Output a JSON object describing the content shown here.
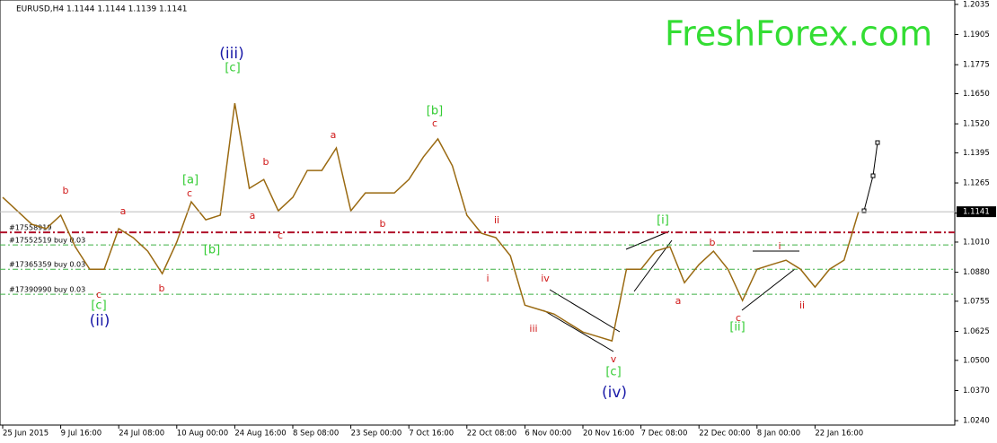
{
  "chart_data": {
    "type": "line",
    "title": "EURUSD,H4  1.1144 1.1144 1.1139 1.1141",
    "watermark": "FreshForex.com",
    "categories": [
      "25 Jun 2015",
      null,
      null,
      null,
      "9 Jul 16:00",
      null,
      null,
      null,
      "24 Jul 08:00",
      null,
      null,
      null,
      "10 Aug 00:00",
      null,
      null,
      null,
      "24 Aug 16:00",
      null,
      null,
      null,
      "8 Sep 08:00",
      null,
      null,
      null,
      "23 Sep 00:00",
      null,
      null,
      null,
      "7 Oct 16:00",
      null,
      null,
      null,
      "22 Oct 08:00",
      null,
      null,
      null,
      "6 Nov 00:00",
      null,
      null,
      null,
      "20 Nov 16:00",
      null,
      null,
      null,
      "7 Dec 08:00",
      null,
      null,
      null,
      "22 Dec 00:00",
      null,
      null,
      null,
      "8 Jan 00:00",
      null,
      null,
      null,
      "22 Jan 16:00",
      null,
      null,
      null
    ],
    "series": [
      {
        "name": "EURUSD",
        "color": "#9a6a12",
        "values": [
          1.1203,
          1.1145,
          1.1087,
          1.1068,
          1.1126,
          1.099,
          1.0893,
          1.0893,
          1.1068,
          1.1029,
          1.0971,
          1.0874,
          1.101,
          1.1184,
          1.1106,
          1.1126,
          1.1609,
          1.1242,
          1.128,
          1.1145,
          1.1203,
          1.1319,
          1.1319,
          1.1416,
          1.1145,
          1.1222,
          1.1222,
          1.1222,
          1.128,
          1.1377,
          1.1455,
          1.1339,
          1.1126,
          1.1048,
          1.1029,
          1.0951,
          1.0738,
          1.0719,
          1.07,
          1.0661,
          1.0622,
          1.0603,
          1.0584,
          1.0893,
          1.0893,
          1.0971,
          1.099,
          1.0835,
          1.0913,
          1.0971,
          1.0893,
          1.0758,
          1.0893,
          1.0913,
          1.0932,
          1.0893,
          1.0816,
          1.0893,
          1.0932,
          1.1141
        ]
      }
    ],
    "ylim": [
      1.0221,
      1.2054
    ],
    "yticks": [
      {
        "value": 1.2035,
        "label": "1.2035"
      },
      {
        "value": 1.1905,
        "label": "1.1905"
      },
      {
        "value": 1.1775,
        "label": "1.1775"
      },
      {
        "value": 1.165,
        "label": "1.1650"
      },
      {
        "value": 1.152,
        "label": "1.1520"
      },
      {
        "value": 1.1395,
        "label": "1.1395"
      },
      {
        "value": 1.1265,
        "label": "1.1265"
      },
      {
        "value": 1.1135,
        "label": "1.1135"
      },
      {
        "value": 1.101,
        "label": "1.1010"
      },
      {
        "value": 1.088,
        "label": "1.0880"
      },
      {
        "value": 1.0755,
        "label": "1.0755"
      },
      {
        "value": 1.0625,
        "label": "1.0625"
      },
      {
        "value": 1.05,
        "label": "1.0500"
      },
      {
        "value": 1.037,
        "label": "1.0370"
      },
      {
        "value": 1.024,
        "label": "1.0240"
      }
    ],
    "current_price": {
      "value": 1.1141,
      "label": "1.1141"
    },
    "levels": [
      {
        "label": "#17558919",
        "value": 1.1052,
        "color": "#b0102a"
      },
      {
        "label": "#17552519 buy 0.03",
        "value": 1.0998,
        "color": "#3cb043"
      },
      {
        "label": "#17365359 buy 0.03",
        "value": 1.0893,
        "color": "#3cb043"
      },
      {
        "label": "#17390990 buy 0.03",
        "value": 1.0785,
        "color": "#3cb043"
      }
    ],
    "annotations": [
      {
        "text": "(iii)",
        "color": "#1a1aa8"
      },
      {
        "text": "[c]",
        "color": "#33cc33"
      },
      {
        "text": "b",
        "color": "#d01818"
      },
      {
        "text": "a",
        "color": "#d01818"
      },
      {
        "text": "c",
        "color": "#d01818"
      },
      {
        "text": "[c]",
        "color": "#33cc33"
      },
      {
        "text": "(ii)",
        "color": "#1a1aa8"
      },
      {
        "text": "b",
        "color": "#d01818"
      },
      {
        "text": "c",
        "color": "#d01818"
      },
      {
        "text": "[a]",
        "color": "#33cc33"
      },
      {
        "text": "[b]",
        "color": "#33cc33"
      },
      {
        "text": "b",
        "color": "#d01818"
      },
      {
        "text": "a",
        "color": "#d01818"
      },
      {
        "text": "c",
        "color": "#d01818"
      },
      {
        "text": "a",
        "color": "#d01818"
      },
      {
        "text": "b",
        "color": "#d01818"
      },
      {
        "text": "[b]",
        "color": "#33cc33"
      },
      {
        "text": "c",
        "color": "#d01818"
      },
      {
        "text": "ii",
        "color": "#d01818"
      },
      {
        "text": "i",
        "color": "#d01818"
      },
      {
        "text": "iv",
        "color": "#d01818"
      },
      {
        "text": "iii",
        "color": "#d01818"
      },
      {
        "text": "v",
        "color": "#d01818"
      },
      {
        "text": "[c]",
        "color": "#33cc33"
      },
      {
        "text": "(iv)",
        "color": "#1a1aa8"
      },
      {
        "text": "[i]",
        "color": "#33cc33"
      },
      {
        "text": "a",
        "color": "#d01818"
      },
      {
        "text": "b",
        "color": "#d01818"
      },
      {
        "text": "c",
        "color": "#d01818"
      },
      {
        "text": "[ii]",
        "color": "#33cc33"
      },
      {
        "text": "i",
        "color": "#d01818"
      },
      {
        "text": "ii",
        "color": "#d01818"
      }
    ]
  }
}
